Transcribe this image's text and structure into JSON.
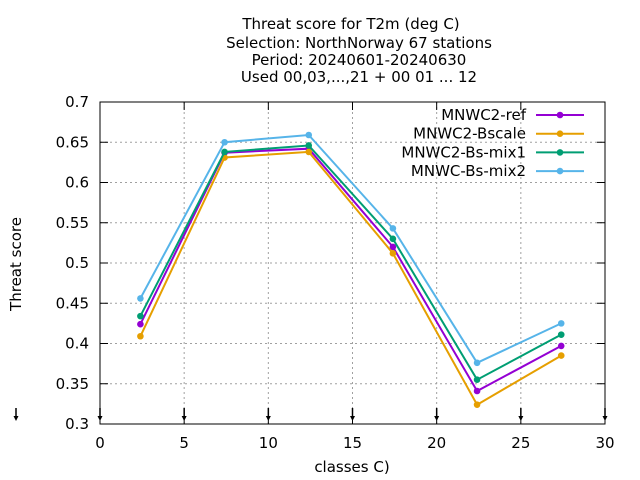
{
  "chart_data": {
    "type": "line",
    "title_lines": [
      "Threat score  for T2m (deg C)",
      "Selection: NorthNorway      67 stations",
      "Period: 20240601-20240630",
      "Used 00,03,...,21 + 00 01 ... 12"
    ],
    "xlabel": "classes C)",
    "ylabel": "Threat score",
    "xlim": [
      0,
      30
    ],
    "ylim": [
      0.3,
      0.7
    ],
    "xticks": [
      "0",
      "5",
      "10",
      "15",
      "20",
      "25",
      "30"
    ],
    "yticks": [
      "0.3",
      "0.35",
      "0.4",
      "0.45",
      "0.5",
      "0.55",
      "0.6",
      "0.65",
      "0.7"
    ],
    "grid": true,
    "legend_position": "top-right",
    "x": [
      2.4,
      7.4,
      12.4,
      17.4,
      22.4,
      27.4
    ],
    "series": [
      {
        "name": "MNWC2-ref",
        "color": "#9400d3",
        "values": [
          0.424,
          0.637,
          0.642,
          0.52,
          0.341,
          0.397
        ]
      },
      {
        "name": "MNWC2-Bscale",
        "color": "#e69f00",
        "values": [
          0.409,
          0.631,
          0.638,
          0.512,
          0.324,
          0.385
        ]
      },
      {
        "name": "MNWC2-Bs-mix1",
        "color": "#009e73",
        "values": [
          0.434,
          0.638,
          0.646,
          0.53,
          0.355,
          0.411
        ]
      },
      {
        "name": "MNWC-Bs-mix2",
        "color": "#56b4e9",
        "values": [
          0.456,
          0.65,
          0.659,
          0.543,
          0.376,
          0.425
        ]
      }
    ],
    "bottom_markers_x": [
      0,
      5,
      10,
      15,
      20,
      25,
      30
    ]
  }
}
